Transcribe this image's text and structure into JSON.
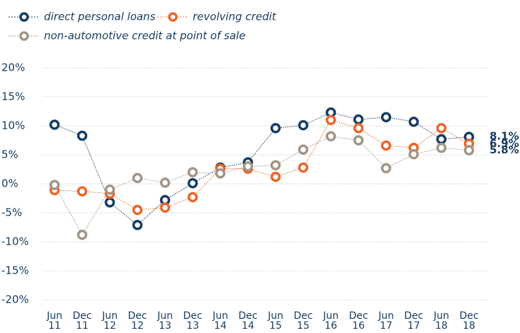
{
  "chart_data": {
    "type": "line",
    "categories": [
      "Jun 11",
      "Dec 11",
      "Jun 12",
      "Dec 12",
      "Jun 13",
      "Dec 13",
      "Jun 14",
      "Dec 14",
      "Jun 15",
      "Dec 15",
      "Jun 16",
      "Dec 16",
      "Jun 17",
      "Dec 17",
      "Jun 18",
      "Dec 18"
    ],
    "series": [
      {
        "name": "direct personal loans",
        "color": "#173d63",
        "values": [
          10.2,
          8.3,
          -3.2,
          -7.1,
          -2.8,
          0.1,
          2.8,
          3.7,
          9.6,
          10.1,
          12.3,
          11.1,
          11.5,
          10.7,
          7.7,
          8.1
        ],
        "value_labels": [
          null,
          null,
          null,
          null,
          null,
          null,
          null,
          null,
          null,
          null,
          null,
          null,
          null,
          null,
          null,
          "8.1%"
        ]
      },
      {
        "name": "revolving credit",
        "color": "#e8672a",
        "values": [
          -1.1,
          -1.3,
          -1.7,
          -4.5,
          -4.1,
          -2.3,
          2.6,
          2.6,
          1.2,
          2.8,
          11.0,
          9.6,
          6.6,
          6.2,
          9.6,
          6.9
        ],
        "value_labels": [
          null,
          null,
          null,
          null,
          null,
          null,
          null,
          null,
          null,
          null,
          null,
          null,
          null,
          null,
          null,
          "6.9%"
        ]
      },
      {
        "name": "non-automotive credit at point of sale",
        "color": "#a39586",
        "values": [
          -0.2,
          -8.8,
          -1.0,
          1.0,
          0.2,
          2.0,
          1.8,
          3.0,
          3.2,
          5.9,
          8.2,
          7.5,
          2.7,
          5.1,
          6.2,
          5.8
        ],
        "value_labels": [
          null,
          null,
          null,
          null,
          null,
          null,
          null,
          null,
          null,
          null,
          null,
          null,
          null,
          null,
          null,
          "5.8%"
        ]
      }
    ],
    "ylim": [
      -20,
      20
    ],
    "yticks": [
      {
        "value": -20,
        "label": "-20%"
      },
      {
        "value": -15,
        "label": "-15%"
      },
      {
        "value": -10,
        "label": "-10%"
      },
      {
        "value": -5,
        "label": "-5%"
      },
      {
        "value": 0,
        "label": "0%"
      },
      {
        "value": 5,
        "label": "5%"
      },
      {
        "value": 10,
        "label": "10%"
      },
      {
        "value": 15,
        "label": "15%"
      },
      {
        "value": 20,
        "label": "20%"
      }
    ],
    "grid": true
  }
}
